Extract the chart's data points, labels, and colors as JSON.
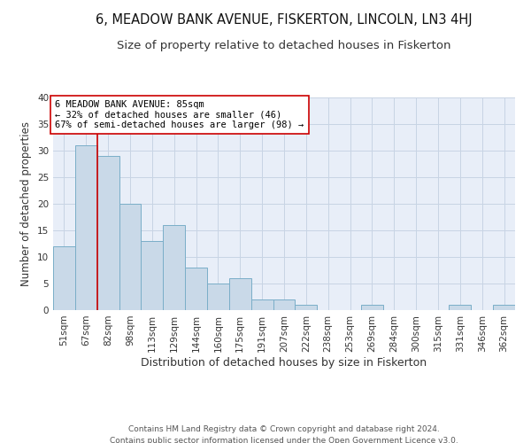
{
  "title": "6, MEADOW BANK AVENUE, FISKERTON, LINCOLN, LN3 4HJ",
  "subtitle": "Size of property relative to detached houses in Fiskerton",
  "xlabel": "Distribution of detached houses by size in Fiskerton",
  "ylabel": "Number of detached properties",
  "categories": [
    "51sqm",
    "67sqm",
    "82sqm",
    "98sqm",
    "113sqm",
    "129sqm",
    "144sqm",
    "160sqm",
    "175sqm",
    "191sqm",
    "207sqm",
    "222sqm",
    "238sqm",
    "253sqm",
    "269sqm",
    "284sqm",
    "300sqm",
    "315sqm",
    "331sqm",
    "346sqm",
    "362sqm"
  ],
  "values": [
    12,
    31,
    29,
    20,
    13,
    16,
    8,
    5,
    6,
    2,
    2,
    1,
    0,
    0,
    1,
    0,
    0,
    0,
    1,
    0,
    1
  ],
  "bar_color": "#c9d9e8",
  "bar_edge_color": "#7aaec8",
  "grid_color": "#c8d4e4",
  "background_color": "#e8eef8",
  "annotation_line1": "6 MEADOW BANK AVENUE: 85sqm",
  "annotation_line2": "← 32% of detached houses are smaller (46)",
  "annotation_line3": "67% of semi-detached houses are larger (98) →",
  "annotation_box_color": "#ffffff",
  "annotation_box_edge": "#cc0000",
  "redline_x": 1.5,
  "ylim": [
    0,
    40
  ],
  "yticks": [
    0,
    5,
    10,
    15,
    20,
    25,
    30,
    35,
    40
  ],
  "footer_line1": "Contains HM Land Registry data © Crown copyright and database right 2024.",
  "footer_line2": "Contains public sector information licensed under the Open Government Licence v3.0.",
  "title_fontsize": 10.5,
  "subtitle_fontsize": 9.5,
  "xlabel_fontsize": 9,
  "ylabel_fontsize": 8.5,
  "tick_fontsize": 7.5,
  "annotation_fontsize": 7.5,
  "footer_fontsize": 6.5
}
